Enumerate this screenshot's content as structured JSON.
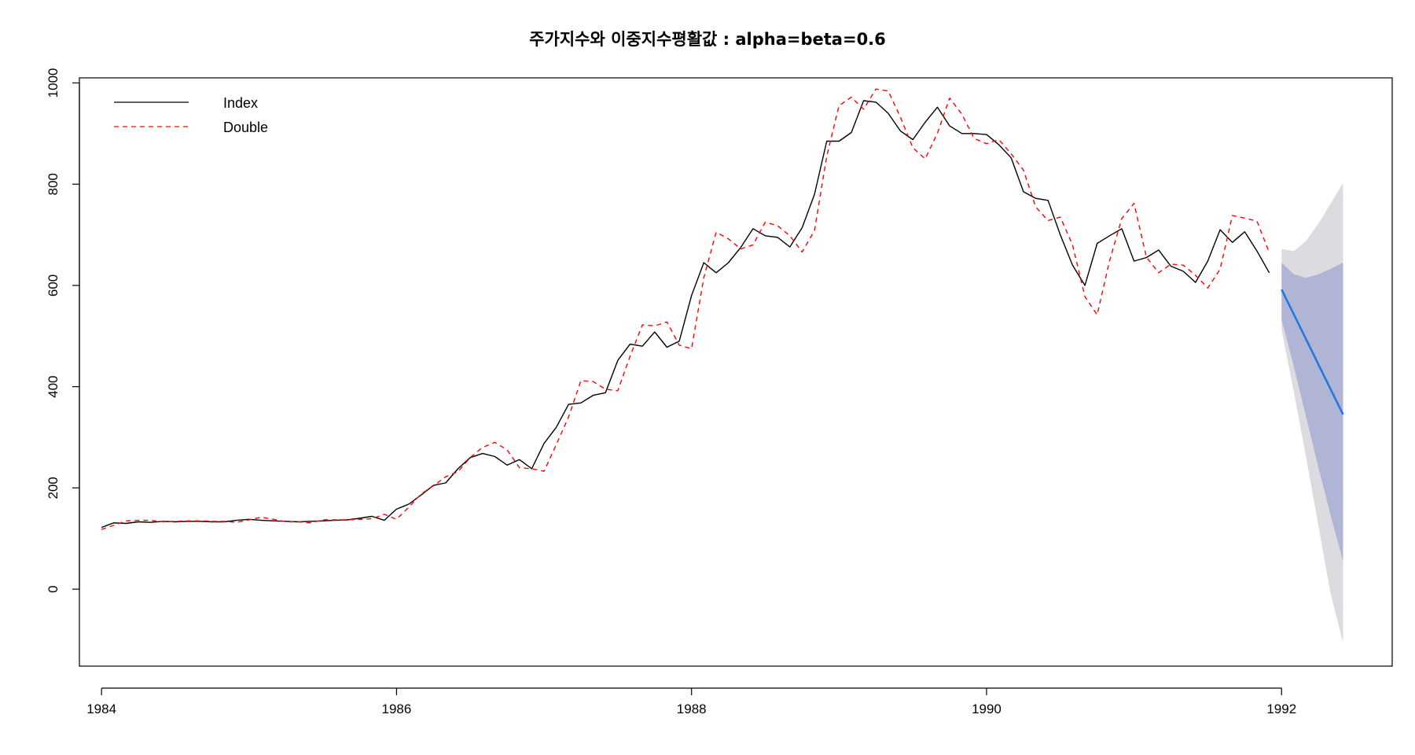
{
  "chart_data": {
    "type": "line",
    "title": "주가지수와 이중지수평활값 : alpha=beta=0.6",
    "xlabel": "",
    "ylabel": "",
    "xlim": [
      1983.85,
      1992.75
    ],
    "ylim": [
      -152,
      1010
    ],
    "x_ticks": [
      1984,
      1986,
      1988,
      1990,
      1992
    ],
    "x_tick_labels": [
      "1984",
      "1986",
      "1988",
      "1990",
      "1992"
    ],
    "y_ticks": [
      0,
      200,
      400,
      600,
      800,
      1000
    ],
    "y_tick_labels": [
      "0",
      "200",
      "400",
      "600",
      "800",
      "1000"
    ],
    "legend": {
      "position": "top-left",
      "entries": [
        "Index",
        "Double"
      ]
    },
    "grid": false,
    "x_start": 1984.0,
    "x_step": 0.083333,
    "series": [
      {
        "name": "Index",
        "color": "#000000",
        "dash": "solid",
        "values": [
          122,
          131,
          130,
          133,
          132,
          134,
          133,
          134,
          134,
          133,
          133,
          136,
          138,
          136,
          135,
          134,
          133,
          134,
          135,
          136,
          137,
          140,
          144,
          136,
          158,
          168,
          186,
          205,
          210,
          238,
          260,
          268,
          262,
          245,
          256,
          238,
          288,
          320,
          365,
          368,
          383,
          388,
          452,
          484,
          480,
          508,
          478,
          490,
          580,
          645,
          625,
          645,
          675,
          712,
          698,
          695,
          676,
          714,
          780,
          885,
          885,
          902,
          965,
          962,
          940,
          905,
          888,
          922,
          952,
          915,
          900,
          900,
          898,
          878,
          852,
          785,
          772,
          768,
          700,
          640,
          600,
          683,
          698,
          712,
          648,
          655,
          670,
          638,
          628,
          606,
          648,
          710,
          685,
          706,
          668,
          625
        ]
      },
      {
        "name": "Double",
        "color": "#ff0000",
        "dash": "dashed",
        "values": [
          118,
          126,
          135,
          136,
          136,
          133,
          134,
          135,
          135,
          134,
          134,
          132,
          137,
          142,
          138,
          133,
          133,
          131,
          137,
          137,
          137,
          138,
          139,
          148,
          138,
          162,
          188,
          204,
          222,
          232,
          260,
          280,
          290,
          275,
          240,
          238,
          233,
          286,
          340,
          412,
          410,
          395,
          392,
          460,
          522,
          520,
          528,
          482,
          475,
          615,
          705,
          692,
          672,
          680,
          725,
          718,
          698,
          666,
          708,
          855,
          955,
          972,
          948,
          988,
          984,
          932,
          872,
          850,
          900,
          970,
          938,
          890,
          880,
          888,
          860,
          828,
          755,
          728,
          735,
          680,
          578,
          542,
          648,
          732,
          762,
          656,
          625,
          642,
          640,
          620,
          595,
          632,
          738,
          733,
          727,
          665
        ],
        "show_last_point": true
      },
      {
        "name": "forecast",
        "color": "#1f78e0",
        "dash": "solid",
        "x": [
          1992.0,
          1992.4167
        ],
        "values": [
          592,
          345
        ]
      }
    ],
    "forecast_intervals": {
      "x": [
        1992.0,
        1992.0833,
        1992.1667,
        1992.25,
        1992.3333,
        1992.4167
      ],
      "outer_lower": [
        512,
        390,
        260,
        125,
        -10,
        -105
      ],
      "outer_upper": [
        672,
        668,
        688,
        722,
        762,
        802
      ],
      "inner_lower": [
        532,
        440,
        340,
        240,
        145,
        55
      ],
      "inner_upper": [
        645,
        622,
        615,
        622,
        633,
        645
      ],
      "outer_color": "#dbdbe0",
      "inner_color": "#b0b5d6"
    }
  }
}
